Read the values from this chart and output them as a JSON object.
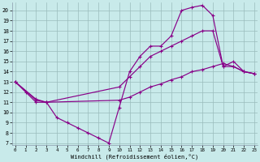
{
  "xlabel": "Windchill (Refroidissement éolien,°C)",
  "bg_color": "#c8eaea",
  "grid_color": "#99bbbb",
  "line_color": "#880088",
  "xlim": [
    -0.3,
    23.3
  ],
  "ylim": [
    6.8,
    20.8
  ],
  "xticks": [
    0,
    1,
    2,
    3,
    4,
    5,
    6,
    7,
    8,
    9,
    10,
    11,
    12,
    13,
    14,
    15,
    16,
    17,
    18,
    19,
    20,
    21,
    22,
    23
  ],
  "yticks": [
    7,
    8,
    9,
    10,
    11,
    12,
    13,
    14,
    15,
    16,
    17,
    18,
    19,
    20
  ],
  "lines": [
    {
      "x": [
        0,
        1,
        2,
        3,
        4,
        5,
        6,
        7,
        8,
        9,
        10,
        11,
        12,
        13,
        14,
        15,
        16,
        17,
        18,
        19,
        20,
        21,
        22,
        23
      ],
      "y": [
        13.0,
        12.0,
        11.0,
        11.0,
        9.5,
        9.0,
        8.5,
        8.0,
        7.5,
        7.0,
        10.5,
        14.0,
        15.5,
        16.5,
        16.5,
        17.5,
        20.0,
        20.3,
        20.5,
        19.5,
        14.5,
        15.0,
        14.0,
        13.8
      ]
    },
    {
      "x": [
        0,
        2,
        3,
        10,
        11,
        12,
        13,
        14,
        15,
        16,
        17,
        18,
        19,
        20,
        21,
        22,
        23
      ],
      "y": [
        13.0,
        11.2,
        11.0,
        12.5,
        13.5,
        14.5,
        15.5,
        16.0,
        16.5,
        17.0,
        17.5,
        18.0,
        18.0,
        14.5,
        14.5,
        14.0,
        13.8
      ]
    },
    {
      "x": [
        0,
        2,
        3,
        10,
        11,
        12,
        13,
        14,
        15,
        16,
        17,
        18,
        19,
        20,
        21,
        22,
        23
      ],
      "y": [
        13.0,
        11.3,
        11.0,
        11.2,
        11.5,
        12.0,
        12.5,
        12.8,
        13.2,
        13.5,
        14.0,
        14.2,
        14.5,
        14.8,
        14.5,
        14.0,
        13.8
      ]
    }
  ]
}
